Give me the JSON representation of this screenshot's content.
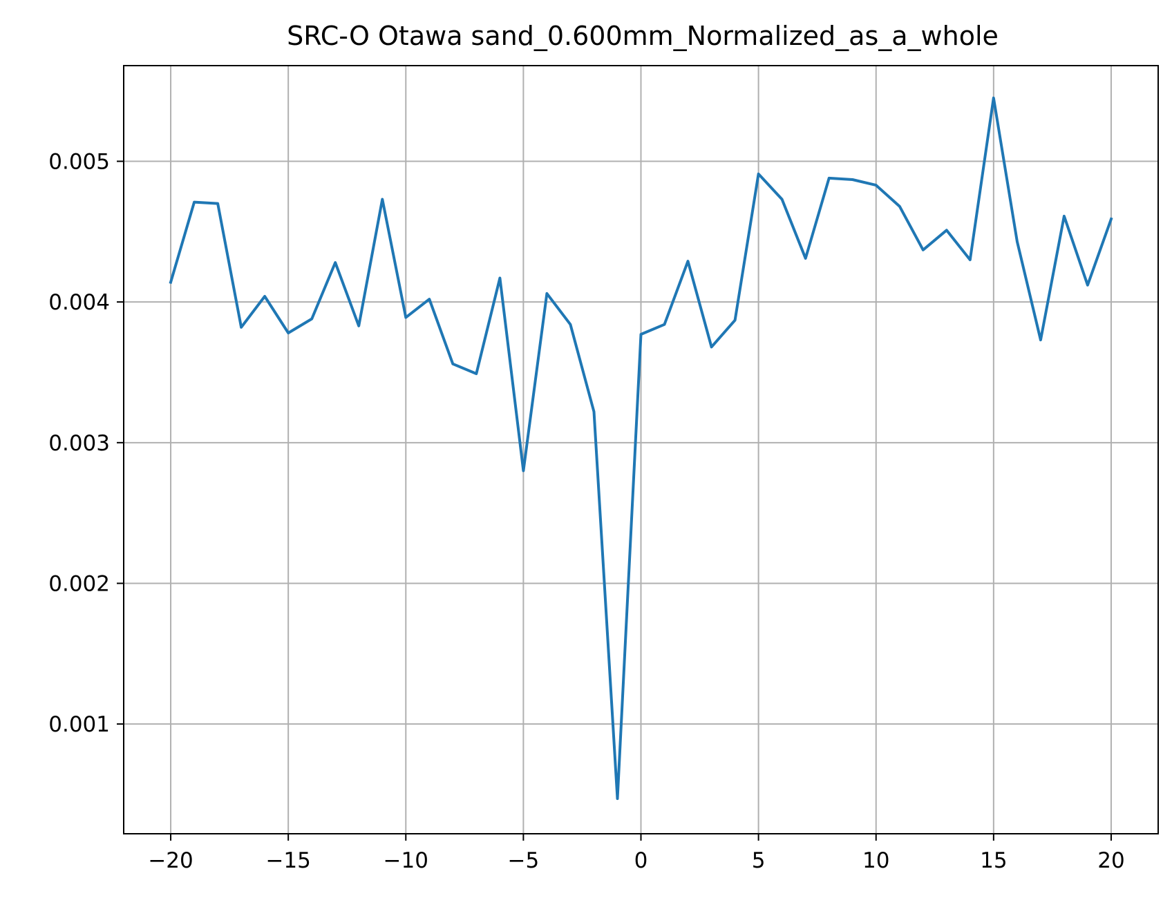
{
  "chart_data": {
    "type": "line",
    "title": "SRC-O Otawa sand_0.600mm_Normalized_as_a_whole",
    "xlabel": "",
    "ylabel": "",
    "xlim": [
      -22,
      22
    ],
    "ylim": [
      0.00022,
      0.00568
    ],
    "grid": true,
    "x_ticks": [
      -20,
      -15,
      -10,
      -5,
      0,
      5,
      10,
      15,
      20
    ],
    "x_tick_labels": [
      "−20",
      "−15",
      "−10",
      "−5",
      "0",
      "5",
      "10",
      "15",
      "20"
    ],
    "y_ticks": [
      0.001,
      0.002,
      0.003,
      0.004,
      0.005
    ],
    "y_tick_labels": [
      "0.001",
      "0.002",
      "0.003",
      "0.004",
      "0.005"
    ],
    "series": [
      {
        "color": "#1f77b4",
        "x": [
          -20,
          -19,
          -18,
          -17,
          -16,
          -15,
          -14,
          -13,
          -12,
          -11,
          -10,
          -9,
          -8,
          -7,
          -6,
          -5,
          -4,
          -3,
          -2,
          -1,
          0,
          1,
          2,
          3,
          4,
          5,
          6,
          7,
          8,
          9,
          10,
          11,
          12,
          13,
          14,
          15,
          16,
          17,
          18,
          19,
          20
        ],
        "y": [
          0.00414,
          0.00471,
          0.0047,
          0.00382,
          0.00404,
          0.00378,
          0.00388,
          0.00428,
          0.00383,
          0.00473,
          0.00389,
          0.00402,
          0.00356,
          0.00349,
          0.00417,
          0.0028,
          0.00406,
          0.00384,
          0.00322,
          0.00047,
          0.00377,
          0.00384,
          0.00429,
          0.00368,
          0.00387,
          0.00491,
          0.00473,
          0.00431,
          0.00488,
          0.00487,
          0.00483,
          0.00468,
          0.00437,
          0.00451,
          0.0043,
          0.00545,
          0.00443,
          0.00373,
          0.00461,
          0.00412,
          0.00459
        ]
      }
    ]
  }
}
